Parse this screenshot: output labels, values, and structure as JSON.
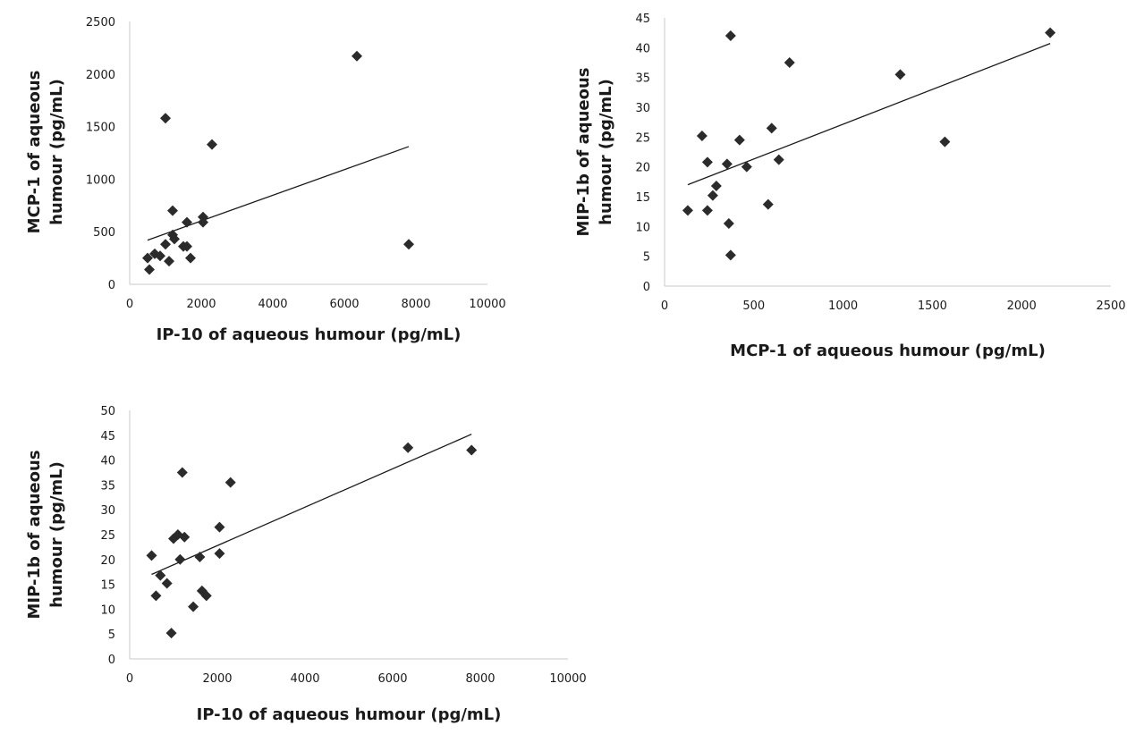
{
  "chart_data": [
    {
      "type": "scatter",
      "title": "",
      "xlabel": "IP-10 of aqueous humour  (pg/mL)",
      "ylabel_lines": [
        "MCP-1 of aqueous",
        "humour  (pg/mL)"
      ],
      "xlim": [
        0,
        10000
      ],
      "ylim": [
        0,
        2500
      ],
      "xticks": [
        0,
        2000,
        4000,
        6000,
        8000,
        10000
      ],
      "yticks": [
        0,
        500,
        1000,
        1500,
        2000,
        2500
      ],
      "grid": false,
      "marker": "diamond",
      "color": "#2b2b2b",
      "points": [
        [
          6350,
          2170
        ],
        [
          1000,
          1580
        ],
        [
          2300,
          1330
        ],
        [
          1200,
          700
        ],
        [
          2050,
          640
        ],
        [
          1600,
          590
        ],
        [
          2050,
          590
        ],
        [
          1200,
          470
        ],
        [
          1250,
          430
        ],
        [
          1000,
          380
        ],
        [
          7800,
          380
        ],
        [
          1500,
          360
        ],
        [
          1600,
          360
        ],
        [
          700,
          290
        ],
        [
          850,
          270
        ],
        [
          500,
          250
        ],
        [
          1700,
          250
        ],
        [
          1100,
          220
        ],
        [
          550,
          140
        ]
      ],
      "trendline": {
        "x": [
          500,
          7800
        ],
        "y": [
          420,
          1310
        ]
      }
    },
    {
      "type": "scatter",
      "title": "",
      "xlabel": "MCP-1 of aqueous humour  (pg/mL)",
      "ylabel_lines": [
        "MIP-1b of aqueous",
        "humour  (pg/mL)"
      ],
      "xlim": [
        0,
        2500
      ],
      "ylim": [
        0,
        45
      ],
      "xticks": [
        0,
        500,
        1000,
        1500,
        2000,
        2500
      ],
      "yticks": [
        0,
        5,
        10,
        15,
        20,
        25,
        30,
        35,
        40,
        45
      ],
      "grid": false,
      "marker": "diamond",
      "color": "#2b2b2b",
      "points": [
        [
          2160,
          42.5
        ],
        [
          370,
          42
        ],
        [
          700,
          37.5
        ],
        [
          1320,
          35.5
        ],
        [
          600,
          26.5
        ],
        [
          210,
          25.2
        ],
        [
          420,
          24.5
        ],
        [
          1570,
          24.2
        ],
        [
          640,
          21.2
        ],
        [
          240,
          20.8
        ],
        [
          350,
          20.5
        ],
        [
          460,
          20
        ],
        [
          290,
          16.8
        ],
        [
          270,
          15.2
        ],
        [
          580,
          13.7
        ],
        [
          130,
          12.7
        ],
        [
          240,
          12.7
        ],
        [
          360,
          10.5
        ],
        [
          370,
          5.2
        ]
      ],
      "trendline": {
        "x": [
          130,
          2160
        ],
        "y": [
          17,
          40.7
        ]
      }
    },
    {
      "type": "scatter",
      "title": "",
      "xlabel": "IP-10 of aqueous humour  (pg/mL)",
      "ylabel_lines": [
        "MIP-1b of aqueous",
        "humour  (pg/mL)"
      ],
      "xlim": [
        0,
        10000
      ],
      "ylim": [
        0,
        50
      ],
      "xticks": [
        0,
        2000,
        4000,
        6000,
        8000,
        10000
      ],
      "yticks": [
        0,
        5,
        10,
        15,
        20,
        25,
        30,
        35,
        40,
        45,
        50
      ],
      "grid": false,
      "marker": "diamond",
      "color": "#2b2b2b",
      "points": [
        [
          6350,
          42.5
        ],
        [
          7800,
          42
        ],
        [
          1200,
          37.5
        ],
        [
          2300,
          35.5
        ],
        [
          2050,
          26.5
        ],
        [
          1100,
          25
        ],
        [
          1250,
          24.5
        ],
        [
          1000,
          24.2
        ],
        [
          2050,
          21.2
        ],
        [
          500,
          20.8
        ],
        [
          1600,
          20.5
        ],
        [
          1150,
          20
        ],
        [
          700,
          16.8
        ],
        [
          850,
          15.2
        ],
        [
          1650,
          13.7
        ],
        [
          600,
          12.7
        ],
        [
          1750,
          12.7
        ],
        [
          1450,
          10.5
        ],
        [
          950,
          5.2
        ]
      ],
      "trendline": {
        "x": [
          500,
          7800
        ],
        "y": [
          17,
          45.2
        ]
      }
    }
  ]
}
